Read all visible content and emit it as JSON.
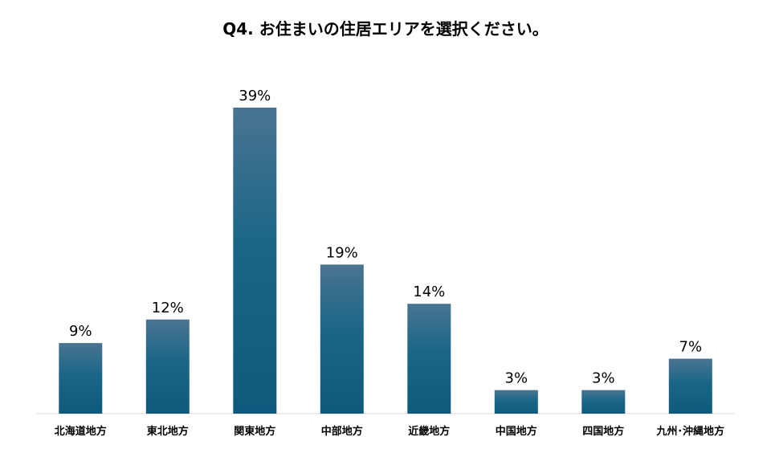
{
  "chart_data": {
    "type": "bar",
    "title": "Q4. お住まいの住居エリアを選択ください。",
    "xlabel": "",
    "ylabel": "",
    "categories": [
      "北海道地方",
      "東北地方",
      "関東地方",
      "中部地方",
      "近畿地方",
      "中国地方",
      "四国地方",
      "九州･沖縄地方"
    ],
    "values": [
      9,
      12,
      39,
      19,
      14,
      3,
      3,
      7
    ],
    "data_labels": [
      "9%",
      "12%",
      "39%",
      "19%",
      "14%",
      "3%",
      "3%",
      "7%"
    ],
    "ylim": [
      0,
      40
    ],
    "grid": false,
    "legend": "none",
    "bar_color_top": "#4a7491",
    "bar_color_bottom": "#0d5a7d"
  }
}
